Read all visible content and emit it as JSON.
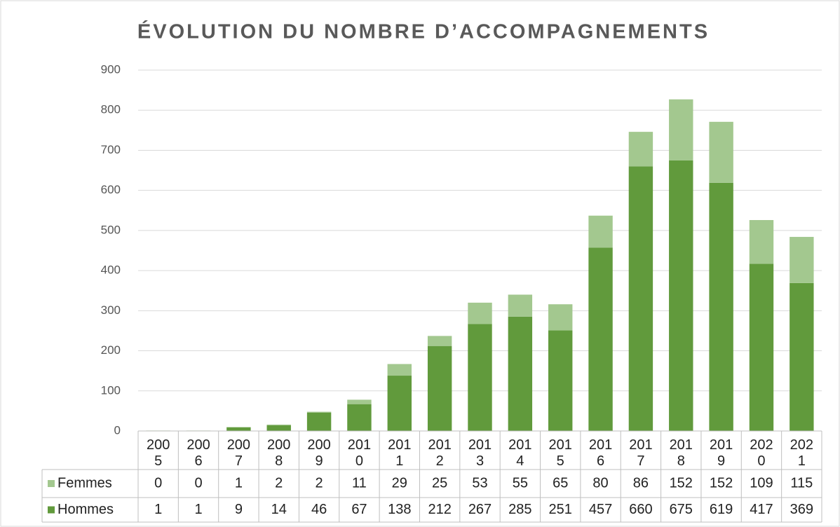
{
  "chart_data": {
    "type": "stacked_bar",
    "title": "ÉVOLUTION DU NOMBRE D’ACCOMPAGNEMENTS",
    "categories": [
      "2005",
      "2006",
      "2007",
      "2008",
      "2009",
      "2010",
      "2011",
      "2012",
      "2013",
      "2014",
      "2015",
      "2016",
      "2017",
      "2018",
      "2019",
      "2020",
      "2021"
    ],
    "series": [
      {
        "name": "Hommes",
        "color": "#619a3c",
        "values": [
          1,
          1,
          9,
          14,
          46,
          67,
          138,
          212,
          267,
          285,
          251,
          457,
          660,
          675,
          619,
          417,
          369
        ]
      },
      {
        "name": "Femmes",
        "color": "#a3c88f",
        "values": [
          0,
          0,
          1,
          2,
          2,
          11,
          29,
          25,
          53,
          55,
          65,
          80,
          86,
          152,
          152,
          109,
          115
        ]
      }
    ],
    "ylim": [
      0,
      900
    ],
    "yticks": [
      0,
      100,
      200,
      300,
      400,
      500,
      600,
      700,
      800,
      900
    ],
    "grid": true,
    "data_table": true
  }
}
